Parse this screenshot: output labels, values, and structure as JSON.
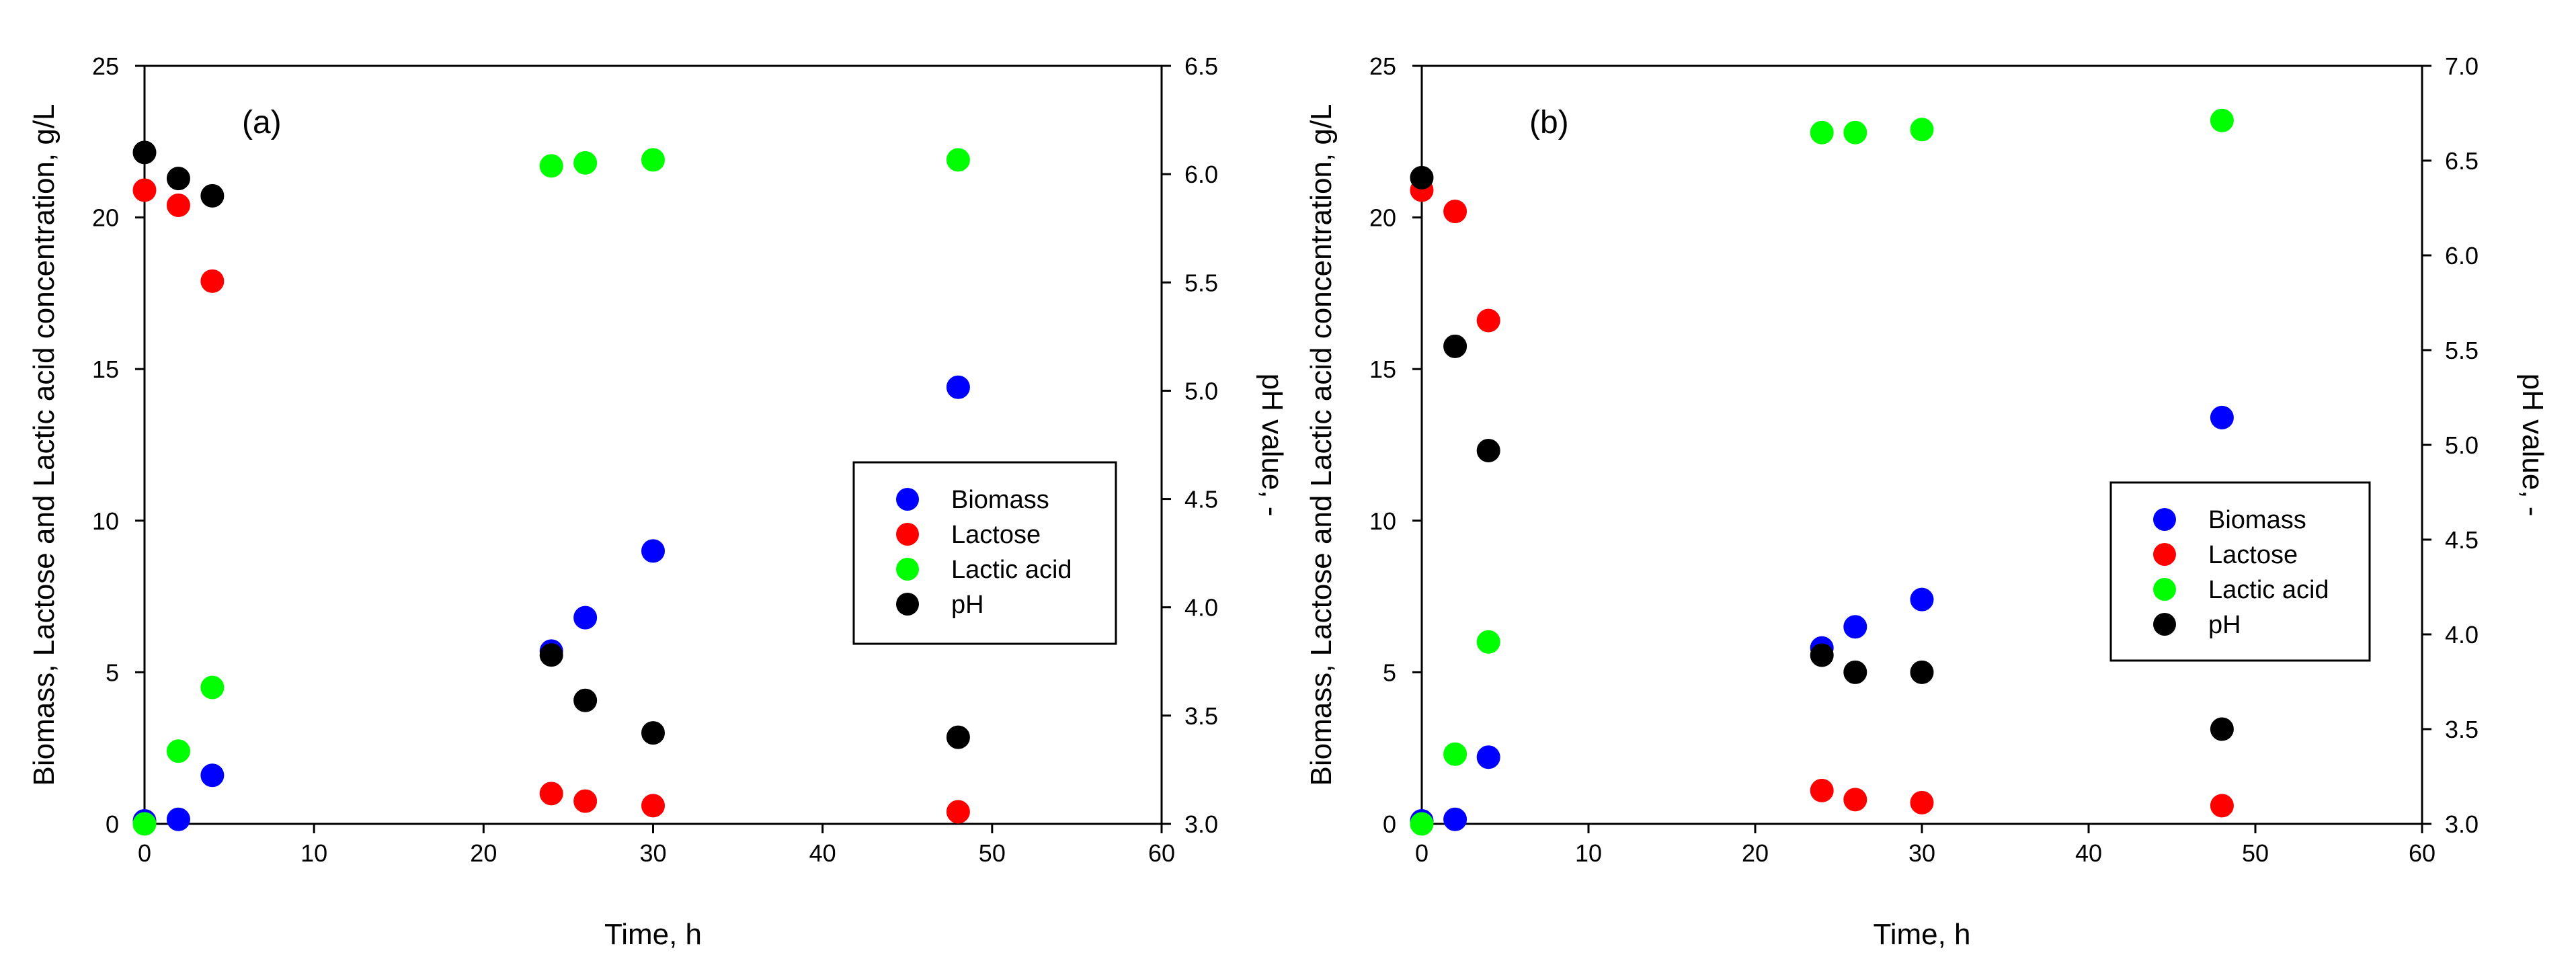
{
  "chart_data": [
    {
      "type": "scatter",
      "panel_label": "(a)",
      "xlabel": "Time, h",
      "ylabel": "Biomass, Lactose and Lactic acid concentration, g/L",
      "y2label": "pH value, -",
      "xlim": [
        0,
        60
      ],
      "ylim": [
        0,
        25
      ],
      "y2lim": [
        3.0,
        6.5
      ],
      "xticks": [
        "0",
        "10",
        "20",
        "30",
        "40",
        "50",
        "60"
      ],
      "yticks": [
        "0",
        "5",
        "10",
        "15",
        "20",
        "25"
      ],
      "y2ticks": [
        "3.0",
        "3.5",
        "4.0",
        "4.5",
        "5.0",
        "5.5",
        "6.0",
        "6.5"
      ],
      "legend_position": "center-right",
      "series": [
        {
          "name": "Biomass",
          "axis": "left",
          "color": "#0000ff",
          "x": [
            0,
            2,
            4,
            24,
            26,
            30,
            48
          ],
          "values": [
            0.1,
            0.15,
            1.6,
            5.7,
            6.8,
            9.0,
            14.4
          ]
        },
        {
          "name": "Lactose",
          "axis": "left",
          "color": "#ff0000",
          "x": [
            0,
            2,
            4,
            24,
            26,
            30,
            48
          ],
          "values": [
            20.9,
            20.4,
            17.9,
            1.0,
            0.75,
            0.6,
            0.4
          ]
        },
        {
          "name": "Lactic acid",
          "axis": "left",
          "color": "#00ff00",
          "x": [
            0,
            2,
            4,
            24,
            26,
            30,
            48
          ],
          "values": [
            0.0,
            2.4,
            4.5,
            21.7,
            21.8,
            21.9,
            21.9
          ]
        },
        {
          "name": "pH",
          "axis": "right",
          "color": "#000000",
          "x": [
            0,
            2,
            4,
            24,
            26,
            30,
            48
          ],
          "values": [
            6.1,
            5.98,
            5.9,
            3.78,
            3.57,
            3.42,
            3.4
          ]
        }
      ]
    },
    {
      "type": "scatter",
      "panel_label": "(b)",
      "xlabel": "Time, h",
      "ylabel": "Biomass, Lactose and Lactic acid concentration, g/L",
      "y2label": "pH value, -",
      "xlim": [
        0,
        60
      ],
      "ylim": [
        0,
        25
      ],
      "y2lim": [
        3.0,
        7.0
      ],
      "xticks": [
        "0",
        "10",
        "20",
        "30",
        "40",
        "50",
        "60"
      ],
      "yticks": [
        "0",
        "5",
        "10",
        "15",
        "20",
        "25"
      ],
      "y2ticks": [
        "3.0",
        "3.5",
        "4.0",
        "4.5",
        "5.0",
        "5.5",
        "6.0",
        "6.5",
        "7.0"
      ],
      "legend_position": "center-right",
      "series": [
        {
          "name": "Biomass",
          "axis": "left",
          "color": "#0000ff",
          "x": [
            0,
            2,
            4,
            24,
            26,
            30,
            48
          ],
          "values": [
            0.1,
            0.15,
            2.2,
            5.8,
            6.5,
            7.4,
            13.4
          ]
        },
        {
          "name": "Lactose",
          "axis": "left",
          "color": "#ff0000",
          "x": [
            0,
            2,
            4,
            24,
            26,
            30,
            48
          ],
          "values": [
            20.9,
            20.2,
            16.6,
            1.1,
            0.8,
            0.7,
            0.6
          ]
        },
        {
          "name": "Lactic acid",
          "axis": "left",
          "color": "#00ff00",
          "x": [
            0,
            2,
            4,
            24,
            26,
            30,
            48
          ],
          "values": [
            0.0,
            2.3,
            6.0,
            22.8,
            22.8,
            22.9,
            23.2
          ]
        },
        {
          "name": "pH",
          "axis": "right",
          "color": "#000000",
          "x": [
            0,
            2,
            4,
            24,
            26,
            30,
            48
          ],
          "values": [
            6.41,
            5.52,
            4.97,
            3.89,
            3.8,
            3.8,
            3.5
          ]
        }
      ]
    }
  ]
}
